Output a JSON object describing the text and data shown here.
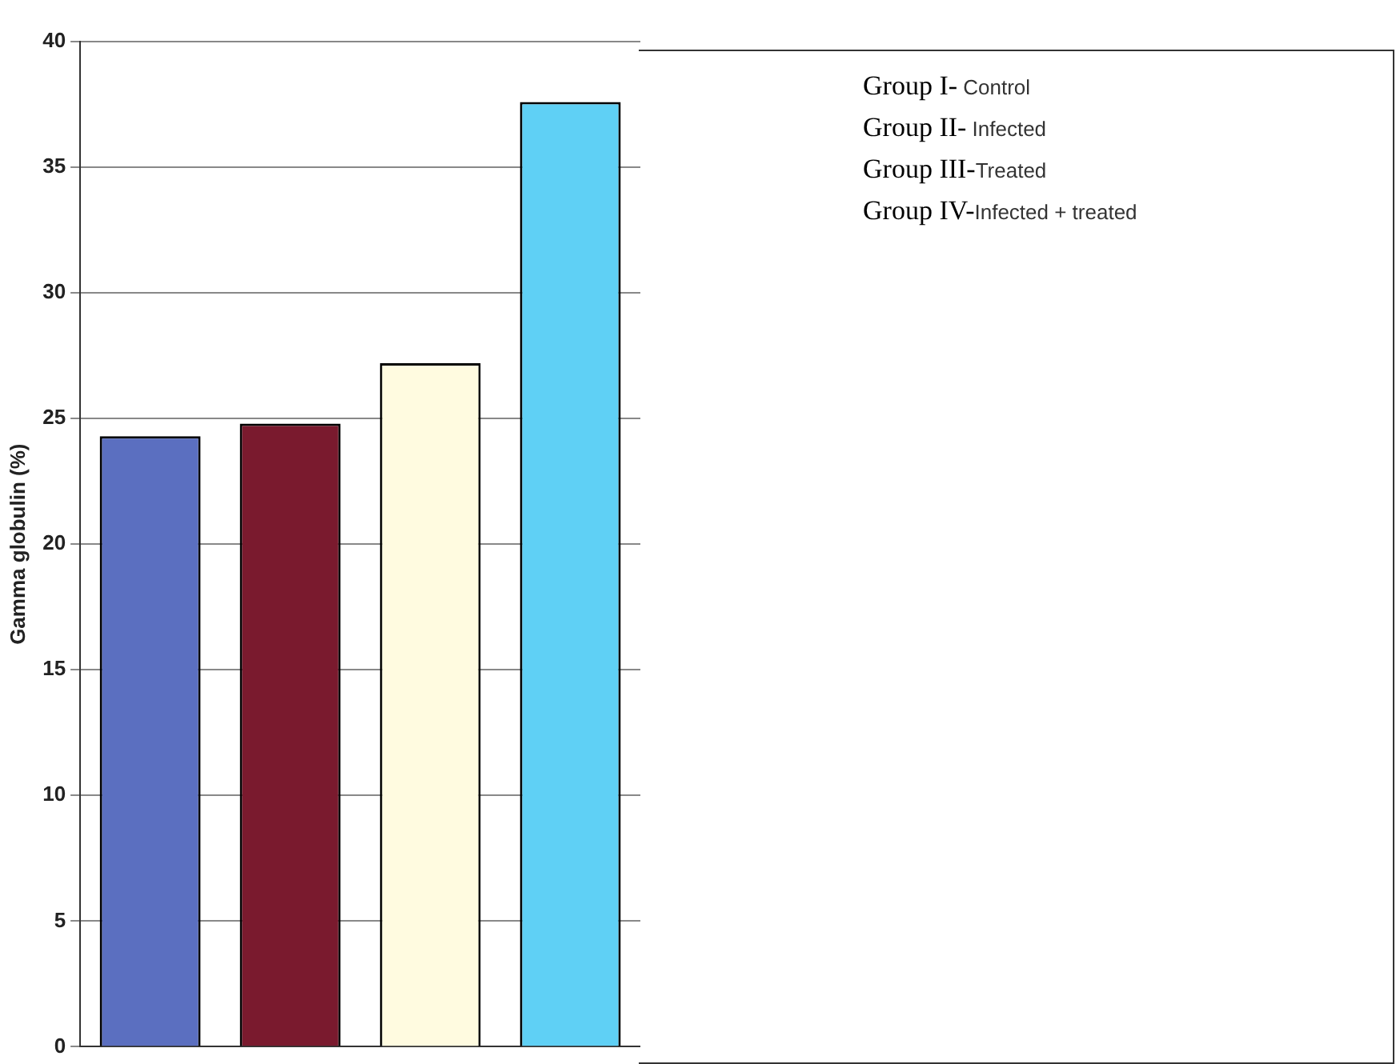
{
  "chart_data": {
    "type": "bar",
    "ylabel": "Gamma globulin (%)",
    "categories": [
      null,
      null,
      null,
      null
    ],
    "values": [
      24.3,
      24.8,
      27.2,
      37.6
    ],
    "colors": [
      "#5b6fc0",
      "#7a1a2e",
      "#fffbe0",
      "#5fd0f5"
    ],
    "ylim": [
      0,
      40
    ],
    "yticks": [
      0,
      5,
      10,
      15,
      20,
      25,
      30,
      35,
      40
    ],
    "grid": "y",
    "annotations": [
      "Group I-  Control",
      "Group II- Infected",
      "Group III-Treated",
      "Group IV-Infected + treated"
    ]
  }
}
